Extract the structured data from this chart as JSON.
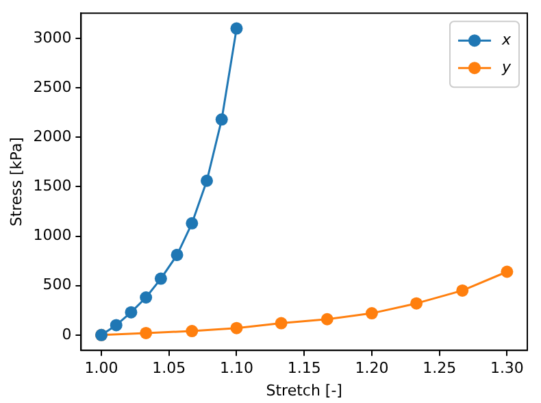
{
  "chart_data": {
    "type": "line",
    "xlabel": "Stretch [-]",
    "ylabel": "Stress [kPa]",
    "xlim": [
      0.985,
      1.315
    ],
    "xticks": [
      {
        "value": 1.0,
        "label": "1.00"
      },
      {
        "value": 1.05,
        "label": "1.05"
      },
      {
        "value": 1.1,
        "label": "1.10"
      },
      {
        "value": 1.15,
        "label": "1.15"
      },
      {
        "value": 1.2,
        "label": "1.20"
      },
      {
        "value": 1.25,
        "label": "1.25"
      },
      {
        "value": 1.3,
        "label": "1.30"
      }
    ],
    "ylim": [
      -155,
      3255
    ],
    "yticks": [
      0,
      500,
      1000,
      1500,
      2000,
      2500,
      3000
    ],
    "series": [
      {
        "name": "x",
        "color": "#1f77b4",
        "x": [
          1.0,
          1.011,
          1.022,
          1.033,
          1.044,
          1.056,
          1.067,
          1.078,
          1.089,
          1.1
        ],
        "values": [
          0,
          100,
          230,
          380,
          570,
          810,
          1130,
          1560,
          2180,
          3100
        ]
      },
      {
        "name": "y",
        "color": "#ff7f0e",
        "x": [
          1.0,
          1.033,
          1.067,
          1.1,
          1.133,
          1.167,
          1.2,
          1.233,
          1.267,
          1.3
        ],
        "values": [
          0,
          20,
          40,
          70,
          120,
          160,
          220,
          320,
          450,
          640
        ]
      }
    ],
    "legend": "top right",
    "grid": false,
    "marker": "circle",
    "line_style": "solid"
  }
}
